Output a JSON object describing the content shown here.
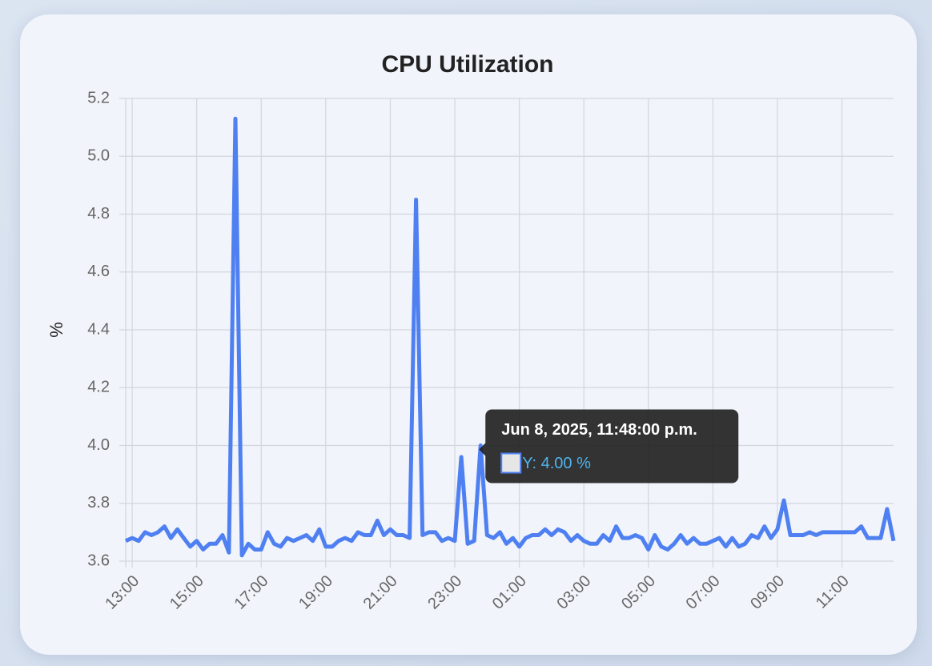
{
  "chart_data": {
    "type": "line",
    "title": "CPU Utilization",
    "y_label": "%",
    "x": [
      "12:48",
      "13:00",
      "13:12",
      "13:24",
      "13:36",
      "13:48",
      "14:00",
      "14:12",
      "14:24",
      "14:36",
      "14:48",
      "15:00",
      "15:12",
      "15:24",
      "15:36",
      "15:48",
      "16:00",
      "16:12",
      "16:24",
      "16:36",
      "16:48",
      "17:00",
      "17:12",
      "17:24",
      "17:36",
      "17:48",
      "18:00",
      "18:12",
      "18:24",
      "18:36",
      "18:48",
      "19:00",
      "19:12",
      "19:24",
      "19:36",
      "19:48",
      "20:00",
      "20:12",
      "20:24",
      "20:36",
      "20:48",
      "21:00",
      "21:12",
      "21:24",
      "21:36",
      "21:48",
      "22:00",
      "22:12",
      "22:24",
      "22:36",
      "22:48",
      "23:00",
      "23:12",
      "23:24",
      "23:36",
      "23:48",
      "00:00",
      "00:12",
      "00:24",
      "00:36",
      "00:48",
      "01:00",
      "01:12",
      "01:24",
      "01:36",
      "01:48",
      "02:00",
      "02:12",
      "02:24",
      "02:36",
      "02:48",
      "03:00",
      "03:12",
      "03:24",
      "03:36",
      "03:48",
      "04:00",
      "04:12",
      "04:24",
      "04:36",
      "04:48",
      "05:00",
      "05:12",
      "05:24",
      "05:36",
      "05:48",
      "06:00",
      "06:12",
      "06:24",
      "06:36",
      "06:48",
      "07:00",
      "07:12",
      "07:24",
      "07:36",
      "07:48",
      "08:00",
      "08:12",
      "08:24",
      "08:36",
      "08:48",
      "09:00",
      "09:12",
      "09:24",
      "09:36",
      "09:48",
      "10:00",
      "10:12",
      "10:24",
      "10:36",
      "10:48",
      "11:00",
      "11:12",
      "11:24",
      "11:36",
      "11:48",
      "12:00",
      "12:12",
      "12:24",
      "12:36"
    ],
    "series": [
      {
        "name": "Y",
        "color": "#4f80f2",
        "values": [
          3.67,
          3.68,
          3.67,
          3.7,
          3.69,
          3.7,
          3.72,
          3.68,
          3.71,
          3.68,
          3.65,
          3.67,
          3.64,
          3.66,
          3.66,
          3.69,
          3.63,
          5.13,
          3.62,
          3.66,
          3.64,
          3.64,
          3.7,
          3.66,
          3.65,
          3.68,
          3.67,
          3.68,
          3.69,
          3.67,
          3.71,
          3.65,
          3.65,
          3.67,
          3.68,
          3.67,
          3.7,
          3.69,
          3.69,
          3.74,
          3.69,
          3.71,
          3.69,
          3.69,
          3.68,
          4.85,
          3.69,
          3.7,
          3.7,
          3.67,
          3.68,
          3.67,
          3.96,
          3.66,
          3.67,
          4.0,
          3.69,
          3.68,
          3.7,
          3.66,
          3.68,
          3.65,
          3.68,
          3.69,
          3.69,
          3.71,
          3.69,
          3.71,
          3.7,
          3.67,
          3.69,
          3.67,
          3.66,
          3.66,
          3.69,
          3.67,
          3.72,
          3.68,
          3.68,
          3.69,
          3.68,
          3.64,
          3.69,
          3.65,
          3.64,
          3.66,
          3.69,
          3.66,
          3.68,
          3.66,
          3.66,
          3.67,
          3.68,
          3.65,
          3.68,
          3.65,
          3.66,
          3.69,
          3.68,
          3.72,
          3.68,
          3.71,
          3.81,
          3.69,
          3.69,
          3.69,
          3.7,
          3.69,
          3.7,
          3.7,
          3.7,
          3.7,
          3.7,
          3.7,
          3.72,
          3.68,
          3.68,
          3.68,
          3.78,
          3.67
        ]
      }
    ],
    "xlim": [
      "12:48",
      "12:36"
    ],
    "xticks": [
      "13:00",
      "15:00",
      "17:00",
      "19:00",
      "21:00",
      "23:00",
      "01:00",
      "03:00",
      "05:00",
      "07:00",
      "09:00",
      "11:00"
    ],
    "ylim": [
      3.6,
      5.2
    ],
    "yticks": [
      3.6,
      3.8,
      {
        "value": 4,
        "label": "4.0"
      },
      4.2,
      4.4,
      4.6,
      4.8,
      {
        "value": 5,
        "label": "5.0"
      },
      5.2
    ],
    "grid": true,
    "tooltip": {
      "title": "Jun 8, 2025, 11:48:00 p.m.",
      "label": "Y: 4.00 %"
    }
  }
}
